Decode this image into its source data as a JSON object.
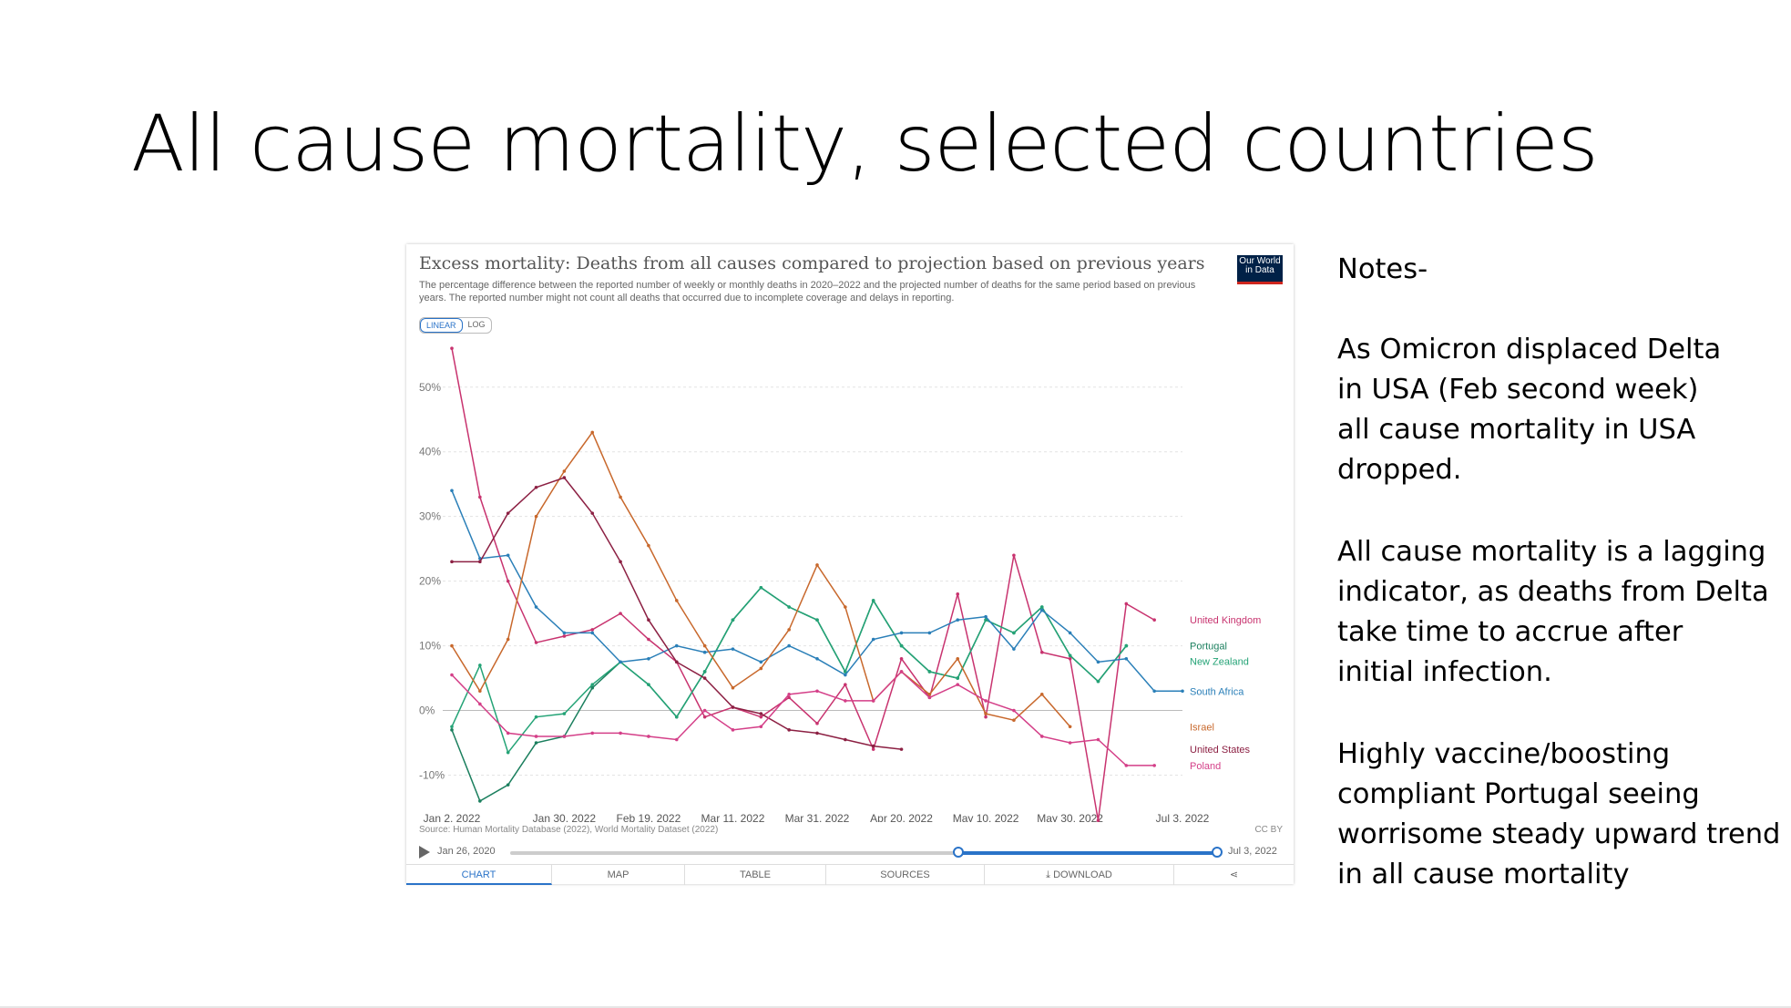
{
  "slide": {
    "title": "All cause mortality, selected countries"
  },
  "chart_card": {
    "heading": "Excess mortality: Deaths from all causes compared to projection based on previous years",
    "subtitle": "The percentage difference between the reported number of weekly or monthly deaths in 2020–2022 and the projected number of deaths for the same period based on previous years. The reported number might not count all deaths that occurred due to incomplete coverage and delays in reporting.",
    "logo_text": "Our World in Data",
    "scale_linear": "LINEAR",
    "scale_log": "LOG",
    "source": "Source: Human Mortality Database (2022), World Mortality Dataset (2022)",
    "license": "CC BY",
    "timeline_start": "Jan 26, 2020",
    "timeline_end": "Jul 3, 2022",
    "tabs": [
      "CHART",
      "MAP",
      "TABLE",
      "SOURCES",
      "DOWNLOAD",
      ""
    ]
  },
  "chart_data": {
    "type": "line",
    "x": [
      "2022-01-02",
      "2022-01-09",
      "2022-01-16",
      "2022-01-23",
      "2022-01-30",
      "2022-02-06",
      "2022-02-13",
      "2022-02-20",
      "2022-02-27",
      "2022-03-06",
      "2022-03-13",
      "2022-03-20",
      "2022-03-27",
      "2022-04-03",
      "2022-04-10",
      "2022-04-17",
      "2022-04-24",
      "2022-05-01",
      "2022-05-08",
      "2022-05-15",
      "2022-05-22",
      "2022-05-29",
      "2022-06-05",
      "2022-06-12",
      "2022-06-19",
      "2022-06-26",
      "2022-07-03"
    ],
    "x_tick_labels": [
      "Jan 2, 2022",
      "Jan 30, 2022",
      "Feb 19, 2022",
      "Mar 11, 2022",
      "Mar 31, 2022",
      "Apr 20, 2022",
      "May 10, 2022",
      "May 30, 2022",
      "Jul 3, 2022"
    ],
    "x_tick_indices": [
      0,
      4,
      7,
      10,
      13,
      16,
      19,
      22,
      26
    ],
    "y_ticks": [
      -10,
      0,
      10,
      20,
      30,
      40,
      50
    ],
    "y_tick_labels": [
      "-10%",
      "0%",
      "10%",
      "20%",
      "30%",
      "40%",
      "50%"
    ],
    "ylim": [
      -15,
      58
    ],
    "unit": "%",
    "grid": true,
    "legend_position": "right-inline",
    "series": [
      {
        "name": "Portugal",
        "color": "#1b7f5e",
        "values": [
          -3,
          -14,
          -11.5,
          -5,
          -4,
          3.5,
          7.5,
          4,
          -1,
          6,
          14,
          19,
          16,
          14,
          6,
          17,
          10,
          6,
          5,
          14,
          12,
          16,
          8.5,
          4.5,
          10,
          null,
          null
        ]
      },
      {
        "name": "United Kingdom",
        "color": "#c8336f",
        "values": [
          56,
          33,
          20,
          10.5,
          11.5,
          12.5,
          15,
          11,
          7.5,
          -1,
          0.5,
          -1,
          2,
          -2,
          4,
          -6,
          8,
          2,
          18,
          -1,
          24,
          9,
          8,
          -17,
          16.5,
          14,
          null
        ]
      },
      {
        "name": "New Zealand",
        "color": "#24a376",
        "values": [
          -2.5,
          7,
          -6.5,
          -1,
          -0.5,
          4,
          7.5,
          4,
          -1,
          6,
          14,
          19,
          16,
          14,
          6,
          17,
          10,
          6,
          5,
          14,
          12,
          16,
          8.5,
          4.5,
          10,
          null,
          null
        ]
      },
      {
        "name": "South Africa",
        "color": "#2a7fb8",
        "values": [
          34,
          23.5,
          24,
          16,
          12,
          12,
          7.5,
          8,
          10,
          9,
          9.5,
          7.5,
          10,
          8,
          5.5,
          11,
          12,
          12,
          14,
          14.5,
          9.5,
          15.5,
          12,
          7.5,
          8,
          3,
          3
        ]
      },
      {
        "name": "Israel",
        "color": "#c8682c",
        "values": [
          10,
          3,
          11,
          30,
          37,
          43,
          33,
          25.5,
          17,
          10,
          3.5,
          6.5,
          12.5,
          22.5,
          16,
          1.5,
          6,
          2.5,
          8,
          -0.5,
          -1.5,
          2.5,
          -2.5,
          null,
          null,
          null,
          null
        ]
      },
      {
        "name": "United States",
        "color": "#8c2043",
        "values": [
          23,
          23,
          30.5,
          34.5,
          36,
          30.5,
          23,
          14,
          7.5,
          5,
          0.5,
          -0.5,
          -3,
          -3.5,
          -4.5,
          -5.5,
          -6,
          null,
          null,
          null,
          null,
          null,
          null,
          null,
          null,
          null,
          null
        ]
      },
      {
        "name": "Poland",
        "color": "#d43f88",
        "values": [
          5.5,
          1,
          -3.5,
          -4,
          -4,
          -3.5,
          -3.5,
          -4,
          -4.5,
          0,
          -3,
          -2.5,
          2.5,
          3,
          1.5,
          1.5,
          6,
          2,
          4,
          1.5,
          0,
          -4,
          -5,
          -4.5,
          -8.5,
          -8.5,
          null
        ]
      }
    ]
  },
  "notes": {
    "heading": "Notes-",
    "p1": "As Omicron displaced Delta\nin USA (Feb second week)\nall cause mortality in USA\ndropped.",
    "p2": "All cause mortality is a lagging\nindicator, as deaths from Delta\ntake time to accrue after\ninitial infection.",
    "p3": "Highly vaccine/boosting\ncompliant Portugal seeing\nworrisome steady upward trend\nin all cause mortality"
  }
}
